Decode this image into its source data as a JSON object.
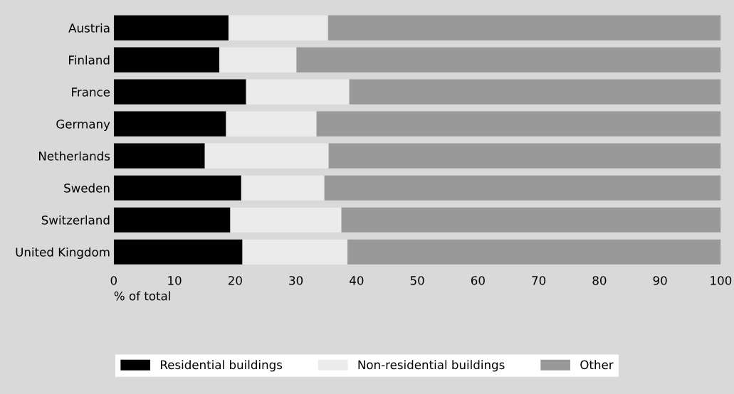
{
  "chart_data": {
    "type": "bar",
    "orientation": "horizontal",
    "stacked": true,
    "categories": [
      "Austria",
      "Finland",
      "France",
      "Germany",
      "Netherlands",
      "Sweden",
      "Switzerland",
      "United Kingdom"
    ],
    "series": [
      {
        "name": "Residential buildings",
        "color": "#000000",
        "values": [
          18.9,
          17.4,
          21.8,
          18.5,
          15.0,
          21.0,
          19.2,
          21.2
        ]
      },
      {
        "name": "Non-residential buildings",
        "color": "#ebebeb",
        "values": [
          16.4,
          12.7,
          17.0,
          14.9,
          20.4,
          13.7,
          18.3,
          17.3
        ]
      },
      {
        "name": "Other",
        "color": "#999999",
        "values": [
          64.7,
          69.9,
          61.2,
          66.6,
          64.6,
          65.3,
          62.5,
          61.5
        ]
      }
    ],
    "xlabel": "% of total",
    "xlim": [
      0,
      100
    ],
    "xticks": [
      0,
      10,
      20,
      30,
      40,
      50,
      60,
      70,
      80,
      90,
      100
    ],
    "grid": false,
    "legend": "bottom"
  }
}
